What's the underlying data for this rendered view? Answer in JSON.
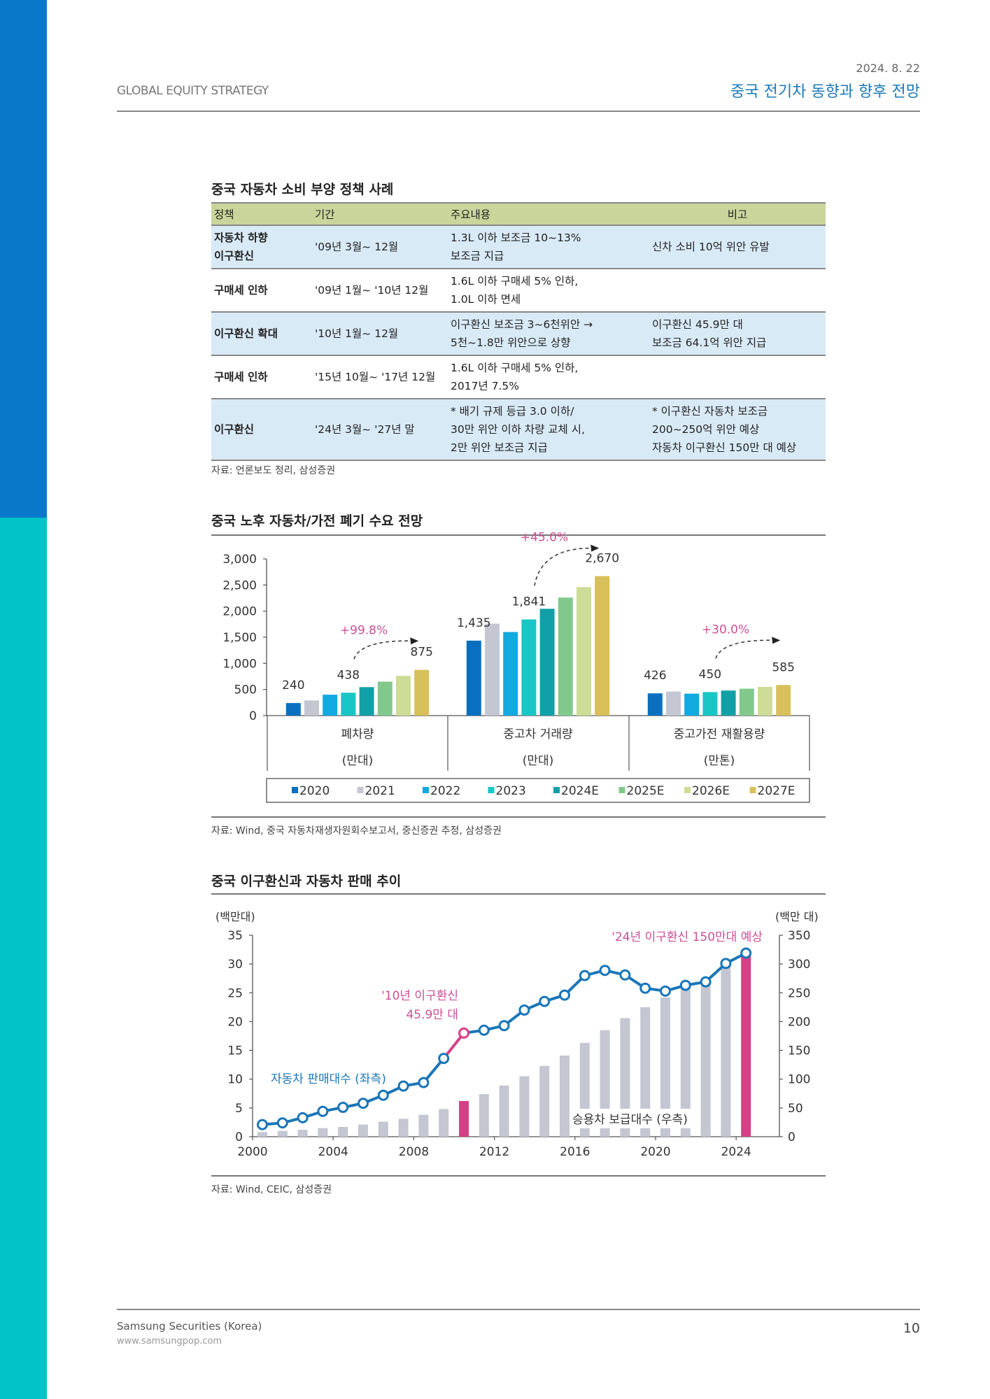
{
  "header": {
    "series_name": "GLOBAL EQUITY STRATEGY",
    "date": "2024. 8. 22",
    "report_title": "중국 전기차 동향과 향후 전망"
  },
  "policy_table": {
    "title": "중국 자동차 소비 부양 정책 사례",
    "columns": [
      "정책",
      "기간",
      "주요내용",
      "비고"
    ],
    "rows": [
      {
        "policy": "자동차 하향\n이구환신",
        "period": "'09년 3월~ 12월",
        "content": "1.3L 이하 보조금 10~13%\n보조금 지급",
        "note": "신차 소비 10억 위안 유발",
        "shaded": true
      },
      {
        "policy": "구매세 인하",
        "period": "'09년 1월~ '10년 12월",
        "content": "1.6L 이하 구매세 5% 인하,\n1.0L 이하 면세",
        "note": "",
        "shaded": false
      },
      {
        "policy": "이구환신 확대",
        "period": "'10년 1월~ 12월",
        "content": "이구환신 보조금 3~6천위안 →\n5천~1.8만 위안으로 상향",
        "note": "이구환신 45.9만 대\n보조금 64.1억 위안 지급",
        "shaded": true
      },
      {
        "policy": "구매세 인하",
        "period": "'15년 10월~ '17년 12월",
        "content": "1.6L 이하 구매세 5% 인하,\n2017년 7.5%",
        "note": "",
        "shaded": false
      },
      {
        "policy": "이구환신",
        "period": "'24년 3월~ '27년 말",
        "content": "* 배기 규제 등급 3.0 이하/\n   30만 위안 이하 차량 교체 시,\n   2만 위안 보조금 지급",
        "note": "* 이구환신 자동차 보조금\n   200~250억 위안 예상\n   자동차 이구환신 150만 대 예상",
        "shaded": true
      }
    ],
    "source": "자료: 언론보도 정리, 삼성증권"
  },
  "chart_data": [
    {
      "type": "bar",
      "title": "중국 노후 자동차/가전 폐기 수요 전망",
      "categories": [
        "폐차량",
        "중고차 거래량",
        "중고가전 재활용량"
      ],
      "category_units": [
        "(만대)",
        "(만대)",
        "(만톤)"
      ],
      "ylim": [
        0,
        3000
      ],
      "yticks": [
        0,
        500,
        1000,
        1500,
        2000,
        2500,
        3000
      ],
      "ytick_labels": [
        "0",
        "500",
        "1,000",
        "1,500",
        "2,000",
        "2,500",
        "3,000"
      ],
      "grid": false,
      "legend_position": "bottom",
      "series": [
        {
          "name": "2020",
          "color": "#0a6fbf",
          "values": [
            240,
            1435,
            426
          ]
        },
        {
          "name": "2021",
          "color": "#c4c6d2",
          "values": [
            290,
            1760,
            460
          ]
        },
        {
          "name": "2022",
          "color": "#12a8e0",
          "values": [
            400,
            1600,
            420
          ]
        },
        {
          "name": "2023",
          "color": "#19c6c6",
          "values": [
            438,
            1841,
            450
          ]
        },
        {
          "name": "2024E",
          "color": "#12a0a8",
          "values": [
            545,
            2045,
            480
          ]
        },
        {
          "name": "2025E",
          "color": "#82c88c",
          "values": [
            650,
            2260,
            515
          ]
        },
        {
          "name": "2026E",
          "color": "#cddc96",
          "values": [
            760,
            2460,
            550
          ]
        },
        {
          "name": "2027E",
          "color": "#d8c05a",
          "values": [
            875,
            2670,
            585
          ]
        }
      ],
      "data_labels": [
        {
          "category": 0,
          "series": 0,
          "text": "240"
        },
        {
          "category": 0,
          "series": 3,
          "text": "438"
        },
        {
          "category": 0,
          "series": 7,
          "text": "875"
        },
        {
          "category": 1,
          "series": 0,
          "text": "1,435"
        },
        {
          "category": 1,
          "series": 3,
          "text": "1,841"
        },
        {
          "category": 1,
          "series": 7,
          "text": "2,670"
        },
        {
          "category": 2,
          "series": 0,
          "text": "426"
        },
        {
          "category": 2,
          "series": 3,
          "text": "450"
        },
        {
          "category": 2,
          "series": 7,
          "text": "585"
        }
      ],
      "annotations": [
        {
          "category": 0,
          "text": "+99.8%",
          "color": "#cc4f96"
        },
        {
          "category": 1,
          "text": "+45.0%",
          "color": "#cc4f96"
        },
        {
          "category": 2,
          "text": "+30.0%",
          "color": "#cc4f96"
        }
      ],
      "source": "자료: Wind, 중국 자동차재생자원회수보고서, 중신증권 추정, 삼성증권"
    },
    {
      "type": "line",
      "title": "중국 이구환신과 자동차 판매 추이",
      "x": [
        2000,
        2001,
        2002,
        2003,
        2004,
        2005,
        2006,
        2007,
        2008,
        2009,
        2010,
        2011,
        2012,
        2013,
        2014,
        2015,
        2016,
        2017,
        2018,
        2019,
        2020,
        2021,
        2022,
        2023,
        2024
      ],
      "xticks": [
        2000,
        2004,
        2008,
        2012,
        2016,
        2020,
        2024
      ],
      "xlim": [
        2000,
        2025
      ],
      "left_axis": {
        "label": "(백만대)",
        "ylim": [
          0,
          35
        ],
        "ticks": [
          0,
          5,
          10,
          15,
          20,
          25,
          30,
          35
        ]
      },
      "right_axis": {
        "label": "(백만 대)",
        "ylim": [
          0,
          350
        ],
        "ticks": [
          0,
          50,
          100,
          150,
          200,
          250,
          300,
          350
        ]
      },
      "grid": false,
      "series": [
        {
          "name": "자동차 판매대수 (좌측)",
          "type": "line",
          "axis": "left",
          "color": "#1a76b8",
          "highlight_color": "#d63f86",
          "highlight_x": [
            2010
          ],
          "values": [
            2.1,
            2.4,
            3.3,
            4.4,
            5.1,
            5.8,
            7.2,
            8.8,
            9.4,
            13.6,
            18.0,
            18.5,
            19.3,
            22.0,
            23.5,
            24.6,
            28.0,
            28.9,
            28.1,
            25.8,
            25.3,
            26.3,
            26.9,
            30.1,
            31.9
          ]
        },
        {
          "name": "승용차 보급대수 (우측)",
          "type": "bar",
          "axis": "right",
          "color": "#c4c6d2",
          "highlight_color": "#d63f86",
          "highlight_x": [
            2010,
            2024
          ],
          "values": [
            8,
            10,
            12,
            15,
            17,
            21,
            26,
            31,
            38,
            48,
            62,
            74,
            89,
            105,
            123,
            141,
            163,
            185,
            206,
            225,
            242,
            262,
            270,
            295,
            315
          ]
        }
      ],
      "annotations": [
        {
          "x": 2010,
          "text_lines": [
            "'10년 이구환신",
            "45.9만 대"
          ],
          "color": "#cc4f96"
        },
        {
          "x": 2024,
          "text_lines": [
            "'24년 이구환신 150만대 예상"
          ],
          "color": "#cc4f96"
        }
      ],
      "series_labels": {
        "line": "자동차 판매대수 (좌측)",
        "bars": "승용차 보급대수 (우측)"
      },
      "source": "자료: Wind, CEIC, 삼성증권"
    }
  ],
  "footer": {
    "company": "Samsung Securities (Korea)",
    "url": "www.samsungpop.com",
    "page": "10"
  }
}
